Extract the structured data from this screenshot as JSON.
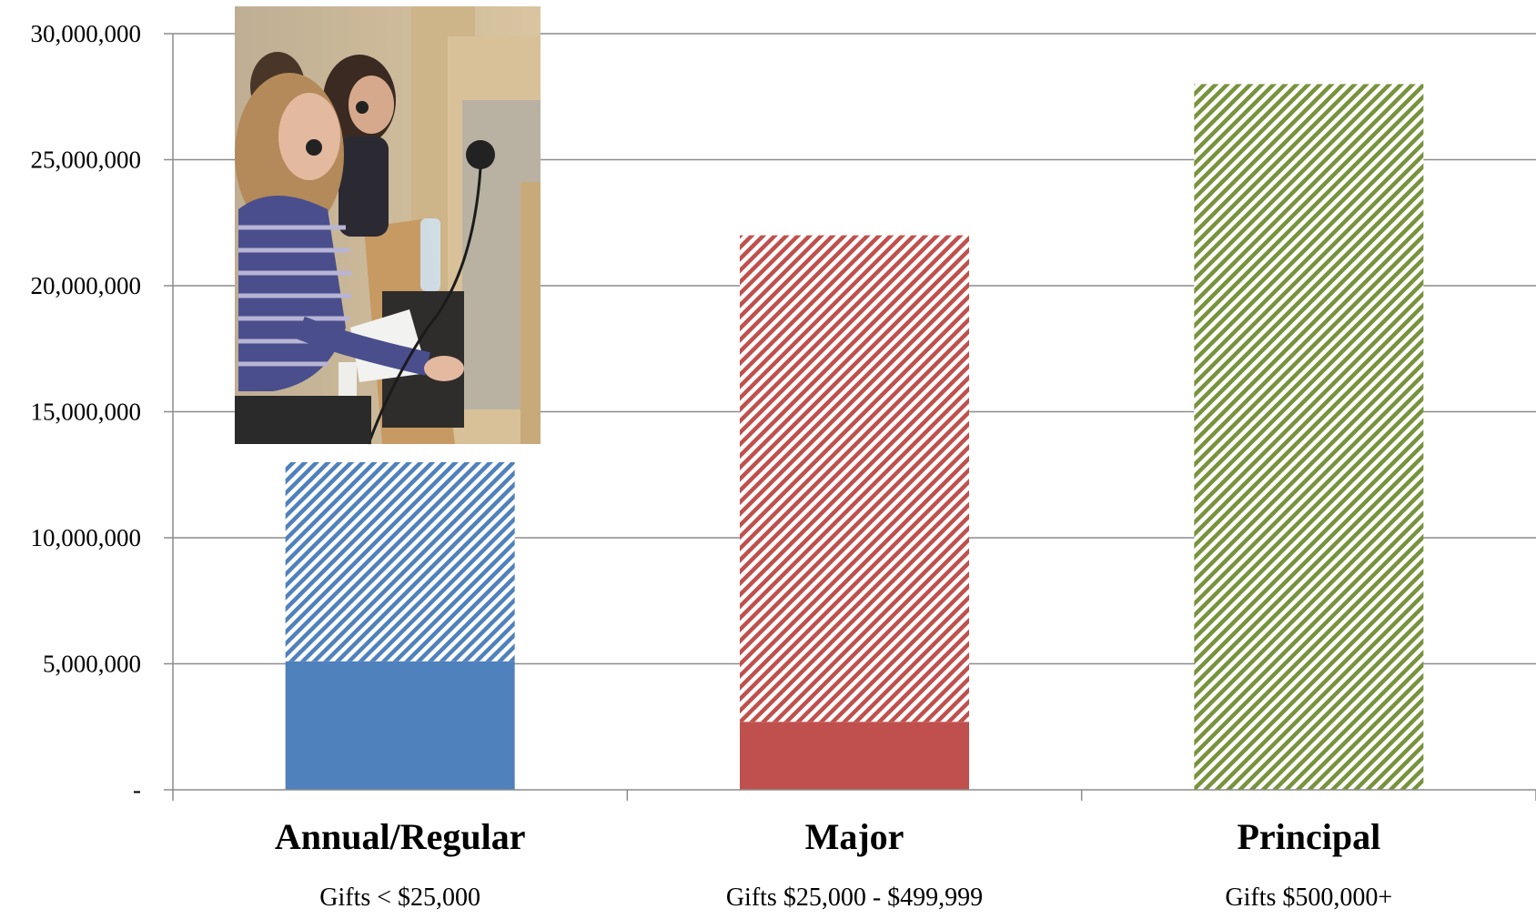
{
  "chart_data": {
    "type": "bar",
    "categories": [
      "Annual/Regular",
      "Major",
      "Principal"
    ],
    "category_subtitles": [
      "Gifts < $25,000",
      "Gifts $25,000 - $499,999",
      "Gifts $500,000+"
    ],
    "series": [
      {
        "values": [
          5100000,
          2700000,
          0
        ],
        "fill": "solid"
      },
      {
        "values": [
          7900000,
          19300000,
          28000000
        ],
        "fill": "diagonal-hatch"
      }
    ],
    "bar_colors": [
      "#4F81BD",
      "#C0504D",
      "#77933C"
    ],
    "yticks": [
      0,
      5000000,
      10000000,
      15000000,
      20000000,
      25000000,
      30000000
    ],
    "ytick_labels": [
      "-",
      "5,000,000",
      "10,000,000",
      "15,000,000",
      "20,000,000",
      "25,000,000",
      "30,000,000"
    ],
    "ylim": [
      0,
      30000000
    ],
    "grid": "horizontal",
    "legend": "none",
    "title": "",
    "xlabel": "",
    "ylabel": ""
  },
  "inset_photo": {
    "subject": "call-center-agents-with-headsets",
    "placement": "top-left"
  }
}
